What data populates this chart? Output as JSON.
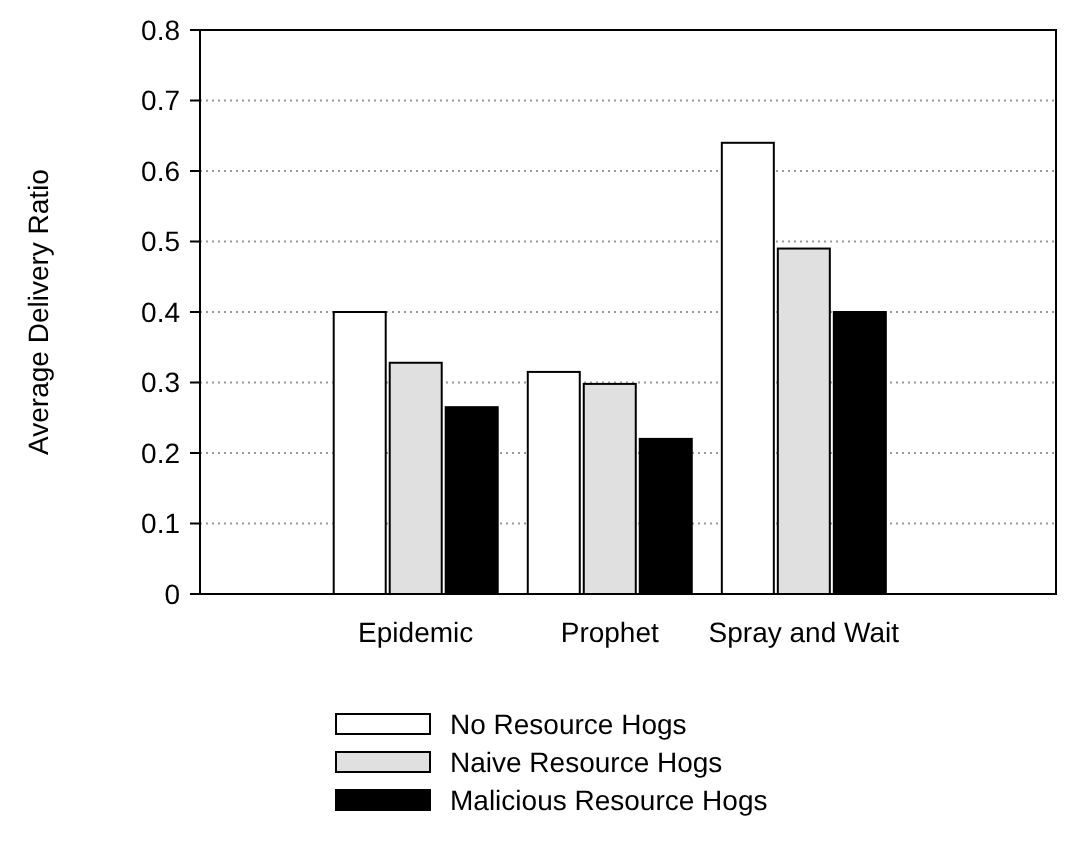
{
  "chart_data": {
    "type": "bar",
    "ylabel": "Average Delivery Ratio",
    "categories": [
      "Epidemic",
      "Prophet",
      "Spray and Wait"
    ],
    "series": [
      {
        "name": "No Resource Hogs",
        "color": "#ffffff",
        "values": [
          0.4,
          0.315,
          0.64
        ]
      },
      {
        "name": "Naive Resource Hogs",
        "color": "#e0e0e0",
        "values": [
          0.328,
          0.298,
          0.49
        ]
      },
      {
        "name": "Malicious Resource Hogs",
        "color": "#000000",
        "values": [
          0.265,
          0.22,
          0.4
        ]
      }
    ],
    "ylim": [
      0,
      0.8
    ],
    "yticks": [
      0,
      0.1,
      0.2,
      0.3,
      0.4,
      0.5,
      0.6,
      0.7,
      0.8
    ],
    "grid": "y",
    "legend": "bottom"
  }
}
